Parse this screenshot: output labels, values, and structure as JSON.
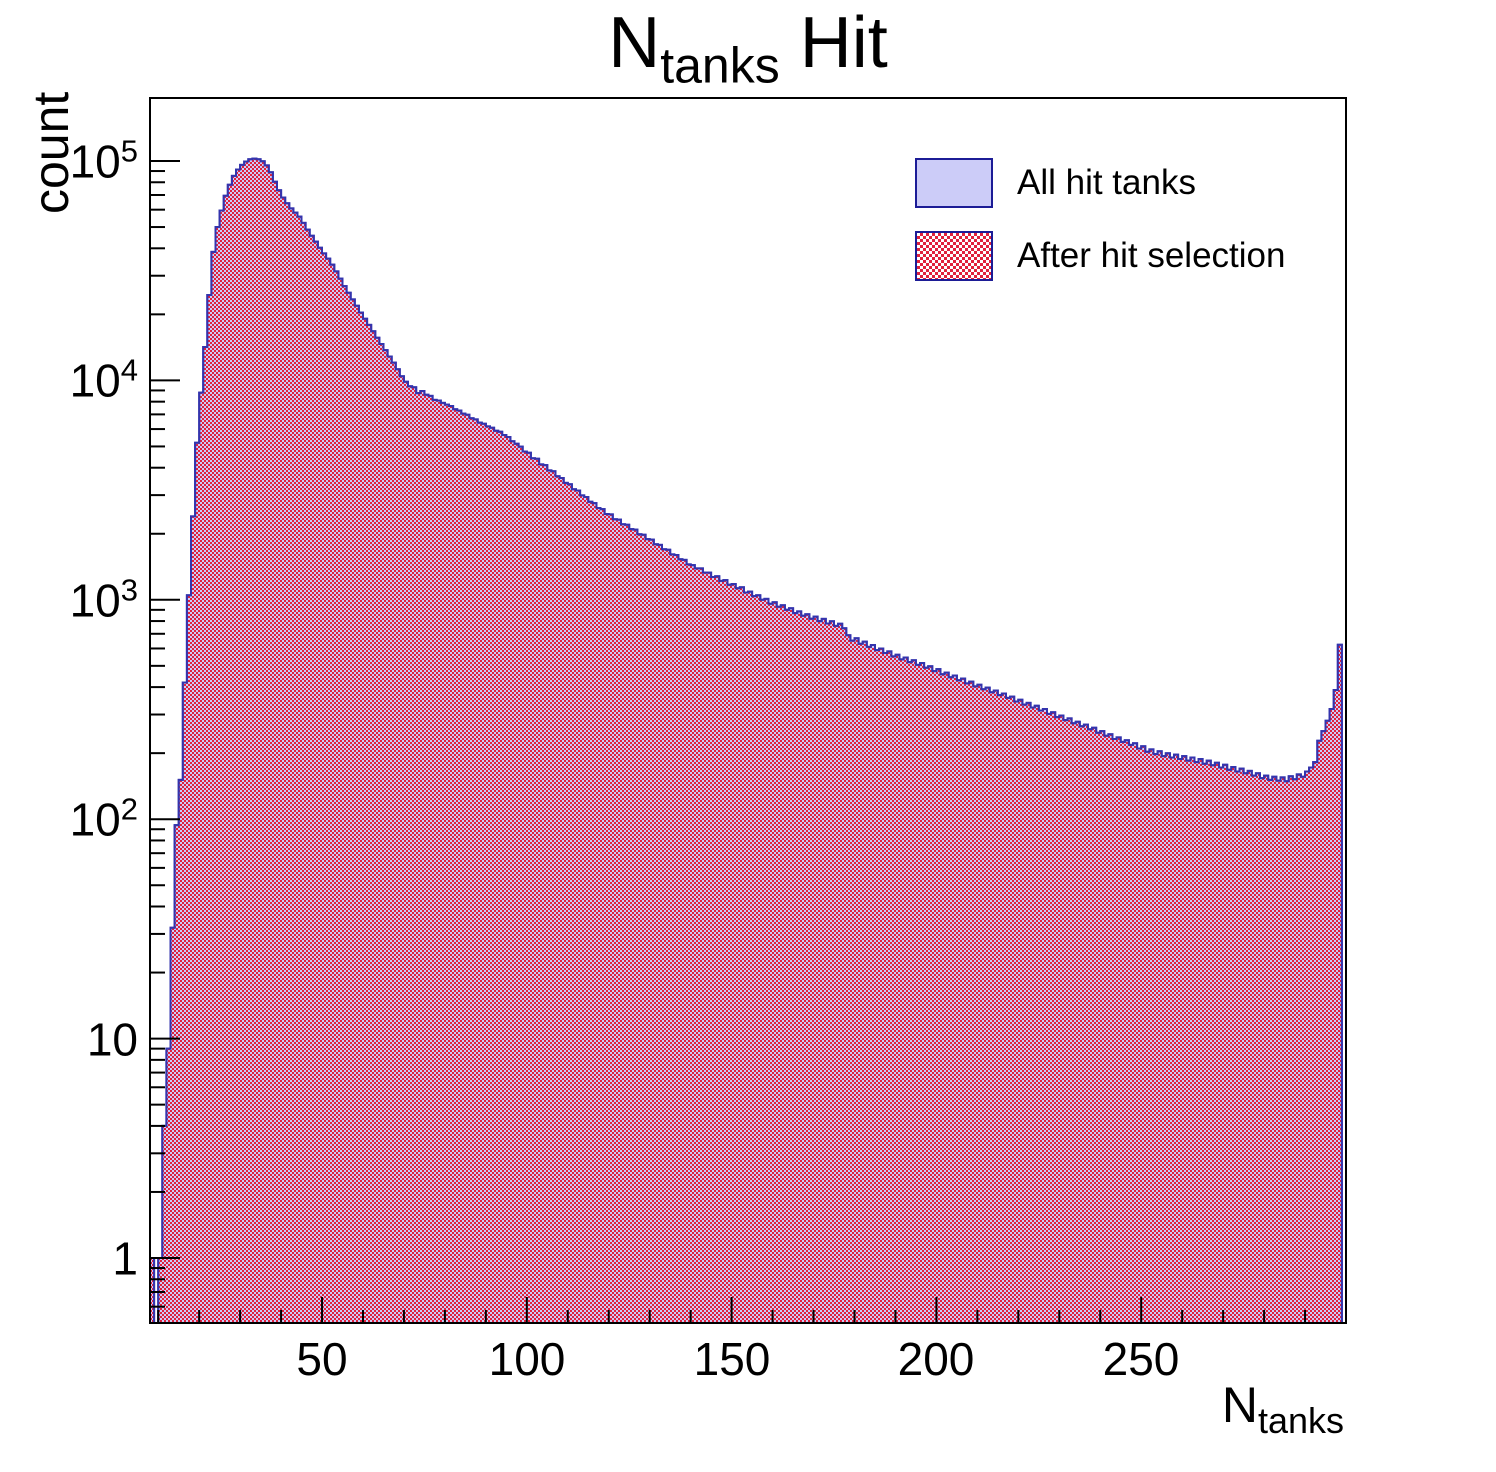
{
  "title": {
    "prefix": "N",
    "sub": "tanks",
    "suffix": " Hit"
  },
  "y_axis": {
    "title": "count",
    "ticks": [
      {
        "base": "10",
        "exp": "5",
        "value": 100000
      },
      {
        "base": "10",
        "exp": "4",
        "value": 10000
      },
      {
        "base": "10",
        "exp": "3",
        "value": 1000
      },
      {
        "base": "10",
        "exp": "2",
        "value": 100
      },
      {
        "base": "10",
        "exp": "",
        "value": 10
      },
      {
        "base": "1",
        "exp": "",
        "value": 1
      }
    ]
  },
  "x_axis": {
    "title_prefix": "N",
    "title_sub": "tanks",
    "ticks": [
      50,
      100,
      150,
      200,
      250
    ]
  },
  "legend": {
    "items": [
      {
        "label": "All hit tanks",
        "swatch": "solid"
      },
      {
        "label": "After hit selection",
        "swatch": "hatch"
      }
    ]
  },
  "colors": {
    "hatch_red": "#e0213c",
    "fill_lavender": "#ccccf8",
    "histogram_line": "#3434ad",
    "legend_border": "#1c1c96",
    "axis": "#000000"
  },
  "chart_data": {
    "type": "bar",
    "subtype": "histogram-overlay",
    "title": "N_tanks Hit",
    "xlabel": "N_tanks",
    "ylabel": "count",
    "y_log": true,
    "xlim": [
      8,
      300
    ],
    "ylim": [
      0.5,
      190000
    ],
    "grid": false,
    "legend_position": "top-right",
    "x_start": 8,
    "bin_width": 1,
    "series": [
      {
        "name": "All hit tanks",
        "style": "solid-lavender",
        "counts_ref": "shared_counts"
      },
      {
        "name": "After hit selection",
        "style": "red-checker-hatch",
        "counts_ref": "shared_counts"
      }
    ],
    "shared_counts": [
      1,
      0,
      1,
      4,
      9,
      32,
      94,
      151,
      420,
      1050,
      2400,
      5200,
      8800,
      14200,
      24500,
      38500,
      50000,
      59500,
      69500,
      78000,
      85500,
      91500,
      96000,
      99500,
      101800,
      102600,
      101900,
      99800,
      95500,
      88800,
      80500,
      73500,
      68200,
      64200,
      60800,
      58200,
      55800,
      52200,
      48700,
      45600,
      42900,
      40200,
      37900,
      35900,
      33700,
      31400,
      29100,
      26900,
      25100,
      23400,
      21900,
      20400,
      19100,
      17900,
      16750,
      15650,
      14650,
      13750,
      12850,
      12050,
      11250,
      10450,
      9850,
      9400,
      9300,
      8750,
      8950,
      8600,
      8500,
      8150,
      8100,
      7900,
      7760,
      7640,
      7380,
      7290,
      7060,
      6980,
      6720,
      6640,
      6420,
      6350,
      6170,
      6080,
      5890,
      5830,
      5640,
      5520,
      5280,
      5140,
      4990,
      4740,
      4680,
      4420,
      4390,
      4140,
      4110,
      3890,
      3850,
      3660,
      3590,
      3410,
      3360,
      3190,
      3150,
      2990,
      2940,
      2800,
      2760,
      2620,
      2590,
      2460,
      2450,
      2330,
      2320,
      2210,
      2200,
      2100,
      2090,
      1990,
      1980,
      1890,
      1880,
      1790,
      1780,
      1700,
      1690,
      1610,
      1600,
      1530,
      1520,
      1450,
      1440,
      1390,
      1390,
      1330,
      1330,
      1270,
      1280,
      1220,
      1230,
      1170,
      1180,
      1130,
      1140,
      1080,
      1090,
      1040,
      1050,
      1000,
      1010,
      960,
      975,
      930,
      945,
      900,
      915,
      870,
      885,
      845,
      860,
      820,
      838,
      800,
      818,
      780,
      798,
      760,
      778,
      742,
      690,
      652,
      668,
      630,
      645,
      610,
      622,
      590,
      600,
      572,
      582,
      552,
      562,
      535,
      546,
      520,
      530,
      505,
      515,
      490,
      498,
      473,
      483,
      458,
      466,
      444,
      452,
      430,
      438,
      416,
      424,
      403,
      410,
      391,
      398,
      379,
      386,
      368,
      374,
      357,
      362,
      344,
      350,
      333,
      339,
      323,
      329,
      313,
      318,
      302,
      307,
      292,
      297,
      283,
      288,
      274,
      278,
      265,
      270,
      257,
      261,
      248,
      252,
      240,
      244,
      232,
      236,
      225,
      229,
      218,
      222,
      210,
      215,
      203,
      208,
      198,
      204,
      194,
      200,
      191,
      197,
      188,
      194,
      185,
      191,
      182,
      188,
      179,
      185,
      176,
      181,
      172,
      177,
      168,
      173,
      165,
      170,
      162,
      166,
      158,
      162,
      154,
      158,
      151,
      156,
      150,
      155,
      149,
      157,
      152,
      160,
      156,
      165,
      172,
      182,
      228,
      252,
      281,
      318,
      388,
      624
    ]
  }
}
